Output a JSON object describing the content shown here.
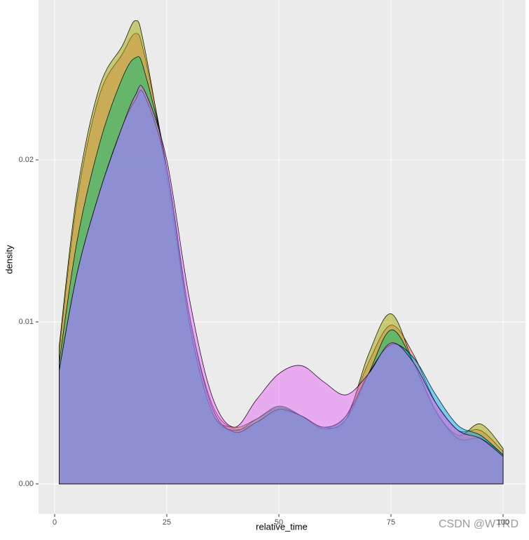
{
  "chart_data": {
    "type": "density",
    "x_label": "relative_time",
    "y_label": "density",
    "watermark": "CSDN @WTRD",
    "x": [
      1,
      5,
      10,
      15,
      18,
      20,
      25,
      30,
      35,
      40,
      45,
      50,
      55,
      60,
      65,
      70,
      75,
      80,
      85,
      90,
      95,
      100
    ],
    "series": [
      {
        "color": "#F8766D",
        "values": [
          0.0082,
          0.0175,
          0.024,
          0.0265,
          0.0278,
          0.0265,
          0.0195,
          0.0105,
          0.005,
          0.0034,
          0.0038,
          0.0045,
          0.0042,
          0.0035,
          0.0042,
          0.0075,
          0.0098,
          0.008,
          0.005,
          0.0033,
          0.0033,
          0.002
        ]
      },
      {
        "color": "#A3A500",
        "values": [
          0.0085,
          0.018,
          0.0245,
          0.027,
          0.0286,
          0.027,
          0.019,
          0.01,
          0.0045,
          0.0035,
          0.004,
          0.0047,
          0.0042,
          0.0035,
          0.004,
          0.008,
          0.0105,
          0.0075,
          0.0045,
          0.003,
          0.0037,
          0.0022
        ]
      },
      {
        "color": "#00BF7D",
        "values": [
          0.0075,
          0.015,
          0.021,
          0.025,
          0.0263,
          0.0255,
          0.0195,
          0.01,
          0.0045,
          0.0033,
          0.004,
          0.0048,
          0.0042,
          0.0034,
          0.004,
          0.0068,
          0.0095,
          0.0075,
          0.0045,
          0.0028,
          0.0028,
          0.0018
        ]
      },
      {
        "color": "#00B0F6",
        "values": [
          0.007,
          0.013,
          0.018,
          0.022,
          0.0237,
          0.024,
          0.0195,
          0.0105,
          0.0048,
          0.0032,
          0.0038,
          0.0046,
          0.0042,
          0.0035,
          0.0042,
          0.0068,
          0.0086,
          0.0078,
          0.0055,
          0.0036,
          0.003,
          0.0018
        ]
      },
      {
        "color": "#E76BF3",
        "values": [
          0.007,
          0.013,
          0.018,
          0.022,
          0.024,
          0.0243,
          0.02,
          0.0115,
          0.0055,
          0.0035,
          0.0052,
          0.0068,
          0.0073,
          0.0063,
          0.0055,
          0.0068,
          0.0087,
          0.0075,
          0.005,
          0.0033,
          0.0028,
          0.0017
        ]
      }
    ],
    "alpha": 0.5,
    "xlim": [
      -3.6,
      105.0
    ],
    "ylim": [
      -0.00186,
      0.02987
    ],
    "xticks": [
      0,
      25,
      50,
      75,
      100
    ],
    "yticks": [
      {
        "value": 0,
        "label": "0.00"
      },
      {
        "value": 0.01,
        "label": "0.01"
      },
      {
        "value": 0.02,
        "label": "0.02"
      }
    ],
    "grid": true
  }
}
